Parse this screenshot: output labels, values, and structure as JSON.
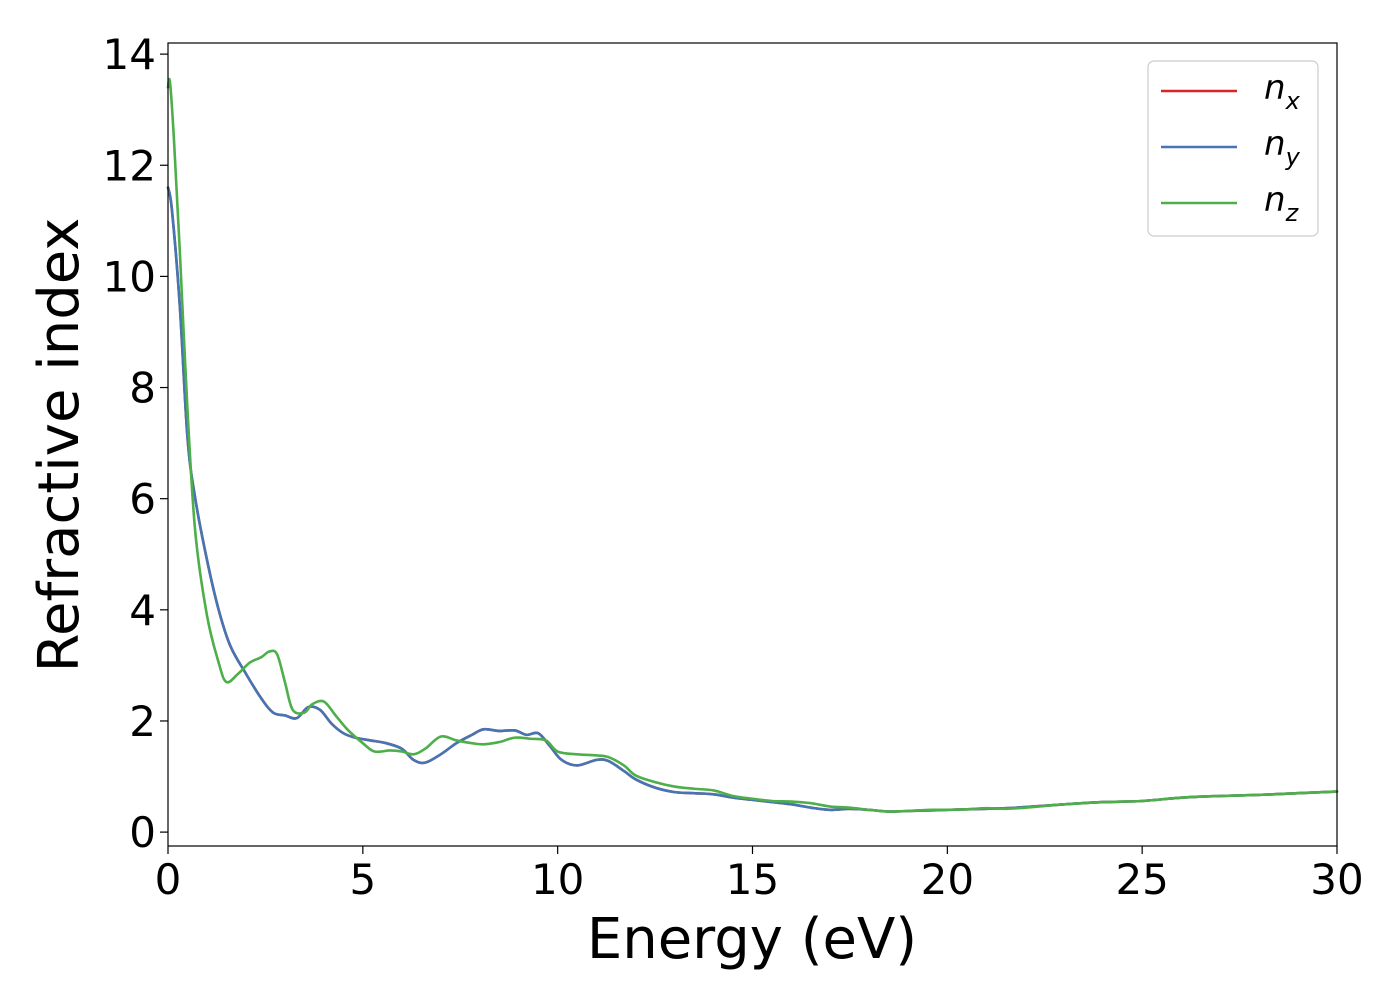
{
  "chart_data": {
    "type": "line",
    "title": "",
    "xlabel": "Energy (eV)",
    "ylabel": "Refractive index",
    "xlim": [
      0,
      30
    ],
    "ylim": [
      -0.25,
      14.2
    ],
    "xticks": [
      0,
      5,
      10,
      15,
      20,
      25,
      30
    ],
    "yticks": [
      0,
      2,
      4,
      6,
      8,
      10,
      12,
      14
    ],
    "xtick_labels": [
      "0",
      "5",
      "10",
      "15",
      "20",
      "25",
      "30"
    ],
    "ytick_labels": [
      "0",
      "2",
      "4",
      "6",
      "8",
      "10",
      "12",
      "14"
    ],
    "grid": false,
    "legend_position": "top-right",
    "series": [
      {
        "name": "n_x",
        "label_base": "n",
        "label_sub": "x",
        "color": "#d62728",
        "x": [
          0,
          0.1,
          0.3,
          0.5,
          0.7,
          1.0,
          1.3,
          1.6,
          2.0,
          2.4,
          2.7,
          3.0,
          3.3,
          3.6,
          3.9,
          4.2,
          4.5,
          4.8,
          5.2,
          5.6,
          6.0,
          6.3,
          6.6,
          7.0,
          7.4,
          7.8,
          8.1,
          8.5,
          8.9,
          9.2,
          9.5,
          9.8,
          10.1,
          10.5,
          11.0,
          11.3,
          11.7,
          12.0,
          12.5,
          13.0,
          13.5,
          14.0,
          14.5,
          15.0,
          15.5,
          16.0,
          16.5,
          17.0,
          17.5,
          18.0,
          18.5,
          19.0,
          19.5,
          20.0,
          20.5,
          21.0,
          21.5,
          22.0,
          23.0,
          24.0,
          25.0,
          26.0,
          27.0,
          28.0,
          29.0,
          30.0
        ],
        "y": [
          11.6,
          11.2,
          9.5,
          7.1,
          6.0,
          4.9,
          4.0,
          3.35,
          2.85,
          2.4,
          2.15,
          2.1,
          2.05,
          2.25,
          2.2,
          1.95,
          1.78,
          1.7,
          1.65,
          1.6,
          1.5,
          1.3,
          1.25,
          1.4,
          1.6,
          1.75,
          1.85,
          1.82,
          1.83,
          1.75,
          1.78,
          1.55,
          1.3,
          1.2,
          1.3,
          1.28,
          1.1,
          0.95,
          0.8,
          0.72,
          0.7,
          0.68,
          0.62,
          0.58,
          0.54,
          0.5,
          0.44,
          0.4,
          0.42,
          0.4,
          0.37,
          0.38,
          0.39,
          0.4,
          0.41,
          0.42,
          0.43,
          0.45,
          0.5,
          0.54,
          0.56,
          0.62,
          0.65,
          0.67,
          0.7,
          0.73
        ]
      },
      {
        "name": "n_y",
        "label_base": "n",
        "label_sub": "y",
        "color": "#4475b4",
        "x": [
          0,
          0.1,
          0.3,
          0.5,
          0.7,
          1.0,
          1.3,
          1.6,
          2.0,
          2.4,
          2.7,
          3.0,
          3.3,
          3.6,
          3.9,
          4.2,
          4.5,
          4.8,
          5.2,
          5.6,
          6.0,
          6.3,
          6.6,
          7.0,
          7.4,
          7.8,
          8.1,
          8.5,
          8.9,
          9.2,
          9.5,
          9.8,
          10.1,
          10.5,
          11.0,
          11.3,
          11.7,
          12.0,
          12.5,
          13.0,
          13.5,
          14.0,
          14.5,
          15.0,
          15.5,
          16.0,
          16.5,
          17.0,
          17.5,
          18.0,
          18.5,
          19.0,
          19.5,
          20.0,
          20.5,
          21.0,
          21.5,
          22.0,
          23.0,
          24.0,
          25.0,
          26.0,
          27.0,
          28.0,
          29.0,
          30.0
        ],
        "y": [
          11.6,
          11.2,
          9.5,
          7.1,
          6.0,
          4.9,
          4.0,
          3.35,
          2.85,
          2.4,
          2.15,
          2.1,
          2.05,
          2.25,
          2.2,
          1.95,
          1.78,
          1.7,
          1.65,
          1.6,
          1.5,
          1.3,
          1.25,
          1.4,
          1.6,
          1.75,
          1.85,
          1.82,
          1.83,
          1.75,
          1.78,
          1.55,
          1.3,
          1.2,
          1.3,
          1.28,
          1.1,
          0.95,
          0.8,
          0.72,
          0.7,
          0.68,
          0.62,
          0.58,
          0.54,
          0.5,
          0.44,
          0.4,
          0.42,
          0.4,
          0.37,
          0.38,
          0.39,
          0.4,
          0.41,
          0.42,
          0.43,
          0.45,
          0.5,
          0.54,
          0.56,
          0.62,
          0.65,
          0.67,
          0.7,
          0.73
        ]
      },
      {
        "name": "n_z",
        "label_base": "n",
        "label_sub": "z",
        "color": "#4daf4a",
        "x": [
          0,
          0.05,
          0.15,
          0.3,
          0.5,
          0.7,
          1.0,
          1.3,
          1.5,
          1.8,
          2.1,
          2.4,
          2.6,
          2.8,
          3.0,
          3.2,
          3.5,
          3.7,
          4.0,
          4.3,
          4.6,
          5.0,
          5.3,
          5.7,
          6.0,
          6.3,
          6.6,
          7.0,
          7.4,
          7.8,
          8.1,
          8.5,
          8.9,
          9.3,
          9.7,
          10.0,
          10.5,
          11.0,
          11.3,
          11.7,
          12.0,
          12.5,
          13.0,
          13.5,
          14.0,
          14.5,
          15.0,
          15.5,
          16.0,
          16.5,
          17.0,
          17.5,
          18.0,
          18.5,
          19.0,
          19.5,
          20.0,
          20.5,
          21.0,
          21.5,
          22.0,
          23.0,
          24.0,
          25.0,
          26.0,
          27.0,
          28.0,
          29.0,
          30.0
        ],
        "y": [
          13.4,
          13.5,
          12.5,
          10.5,
          7.6,
          5.4,
          3.9,
          3.05,
          2.7,
          2.85,
          3.05,
          3.15,
          3.25,
          3.2,
          2.7,
          2.2,
          2.15,
          2.3,
          2.35,
          2.1,
          1.85,
          1.6,
          1.45,
          1.47,
          1.45,
          1.4,
          1.5,
          1.72,
          1.65,
          1.6,
          1.58,
          1.62,
          1.7,
          1.68,
          1.65,
          1.45,
          1.4,
          1.38,
          1.35,
          1.2,
          1.02,
          0.9,
          0.82,
          0.78,
          0.75,
          0.65,
          0.6,
          0.56,
          0.55,
          0.52,
          0.46,
          0.44,
          0.4,
          0.37,
          0.38,
          0.4,
          0.4,
          0.41,
          0.43,
          0.42,
          0.44,
          0.5,
          0.54,
          0.56,
          0.62,
          0.65,
          0.67,
          0.7,
          0.73
        ]
      }
    ]
  }
}
